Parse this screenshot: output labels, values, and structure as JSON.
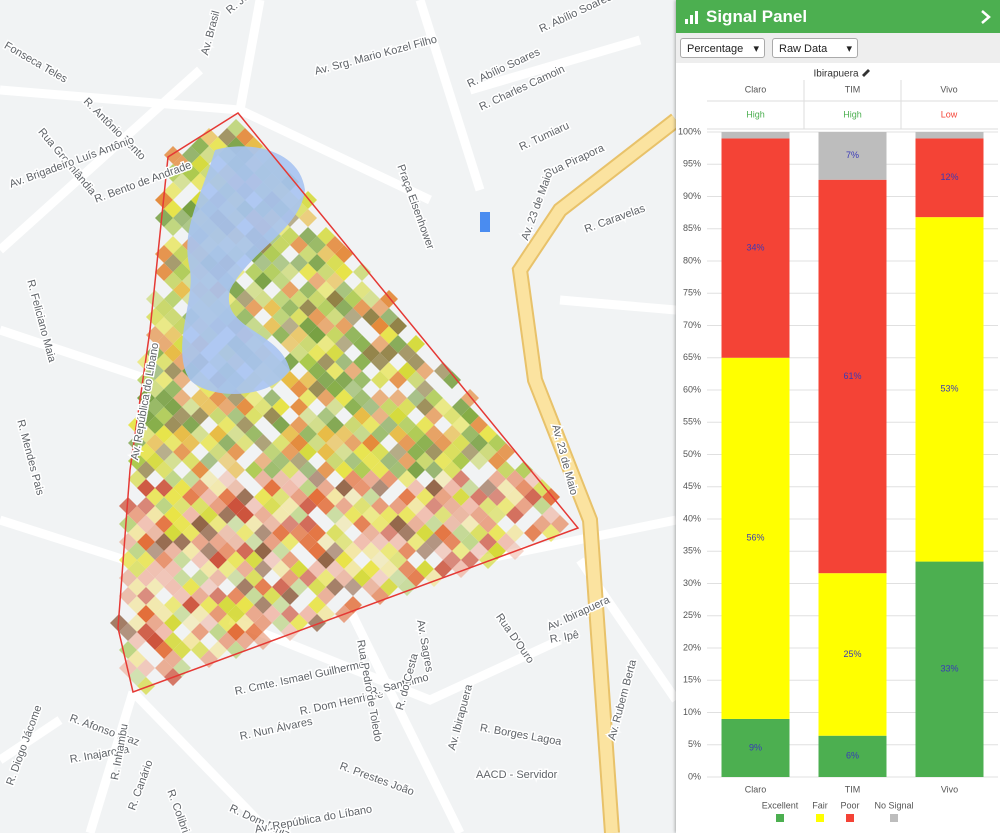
{
  "map": {
    "labels": [
      "Av. Brasil",
      "R. João Pinheiro",
      "Fonseca Teles",
      "R. Antônio Bento",
      "Rua Groenlândia",
      "Av. Brigadeiro Luís Antônio",
      "R. Bento de Andrade",
      "R. Feliciano Maia",
      "Av. Srg. Mario Kozel Filho",
      "R. Abílio Soares",
      "R. Abílio Soares",
      "R. Charles Camoin",
      "R. Tumiaru",
      "Rua Pirapora",
      "R. Caravelas",
      "Praça Eisenhower",
      "Av. 23 de Maio",
      "Av. 23 de Maio",
      "R. Mendes Pais",
      "Av. República do Líbano",
      "R. Cmte. Ismael Guilherme",
      "R. Dom Henrique",
      "R. Santelmo",
      "R. Nun Álvares",
      "Rua Pedro de Toledo",
      "R. do Cesta",
      "R. Prestes João",
      "Av. Ibirapuera",
      "Av. Ibirapuera",
      "Av. Sagres",
      "Rua D'Ouro",
      "R. Ipê",
      "Av. Rubem Berta",
      "R. Borges Lagoa",
      "AACD - Servidor",
      "R. Afonso Braz",
      "R. Inajaroba",
      "R. Diogo Jácome",
      "R. Inhambu",
      "R. Canário",
      "R. Colibri",
      "R. Dom Diniz",
      "Av. República do Líbano"
    ]
  },
  "panel": {
    "title": "Signal Panel",
    "mode_select": "Percentage",
    "data_select": "Raw Data",
    "location": "Ibirapuera",
    "ratings": [
      {
        "name": "Claro",
        "rating": "High",
        "color": "#4caf50"
      },
      {
        "name": "TIM",
        "rating": "High",
        "color": "#4caf50"
      },
      {
        "name": "Vivo",
        "rating": "Low",
        "color": "#f44336"
      }
    ]
  },
  "chart_data": {
    "type": "bar",
    "stacked": true,
    "categories": [
      "Claro",
      "TIM",
      "Vivo"
    ],
    "series": [
      {
        "name": "Excellent",
        "color": "#4caf50",
        "values": [
          9,
          6.4,
          33.4
        ],
        "value_labels": [
          "9%",
          "6%",
          "33%"
        ]
      },
      {
        "name": "Fair",
        "color": "#ffff00",
        "values": [
          56,
          25.2,
          53.4
        ],
        "value_labels": [
          "56%",
          "25%",
          "53%"
        ]
      },
      {
        "name": "Poor",
        "color": "#f44336",
        "values": [
          34,
          61,
          12.2
        ],
        "value_labels": [
          "34%",
          "61%",
          "12%"
        ]
      },
      {
        "name": "No Signal",
        "color": "#bdbdbd",
        "values": [
          1,
          7.4,
          1
        ],
        "value_labels": [
          null,
          "7%",
          null
        ]
      }
    ],
    "ylim": [
      0,
      100
    ],
    "yticks": [
      {
        "value": 0,
        "label": "0%"
      },
      {
        "value": 5,
        "label": "5%"
      },
      {
        "value": 10,
        "label": "10%"
      },
      {
        "value": 15,
        "label": "15%"
      },
      {
        "value": 20,
        "label": "20%"
      },
      {
        "value": 25,
        "label": "25%"
      },
      {
        "value": 30,
        "label": "30%"
      },
      {
        "value": 35,
        "label": "35%"
      },
      {
        "value": 40,
        "label": "40%"
      },
      {
        "value": 45,
        "label": "45%"
      },
      {
        "value": 50,
        "label": "50%"
      },
      {
        "value": 55,
        "label": "55%"
      },
      {
        "value": 60,
        "label": "60%"
      },
      {
        "value": 65,
        "label": "65%"
      },
      {
        "value": 70,
        "label": "70%"
      },
      {
        "value": 75,
        "label": "75%"
      },
      {
        "value": 80,
        "label": "80%"
      },
      {
        "value": 85,
        "label": "85%"
      },
      {
        "value": 90,
        "label": "90%"
      },
      {
        "value": 95,
        "label": "95%"
      },
      {
        "value": 100,
        "label": "100%"
      }
    ],
    "grid": true,
    "legend": "bottom"
  }
}
